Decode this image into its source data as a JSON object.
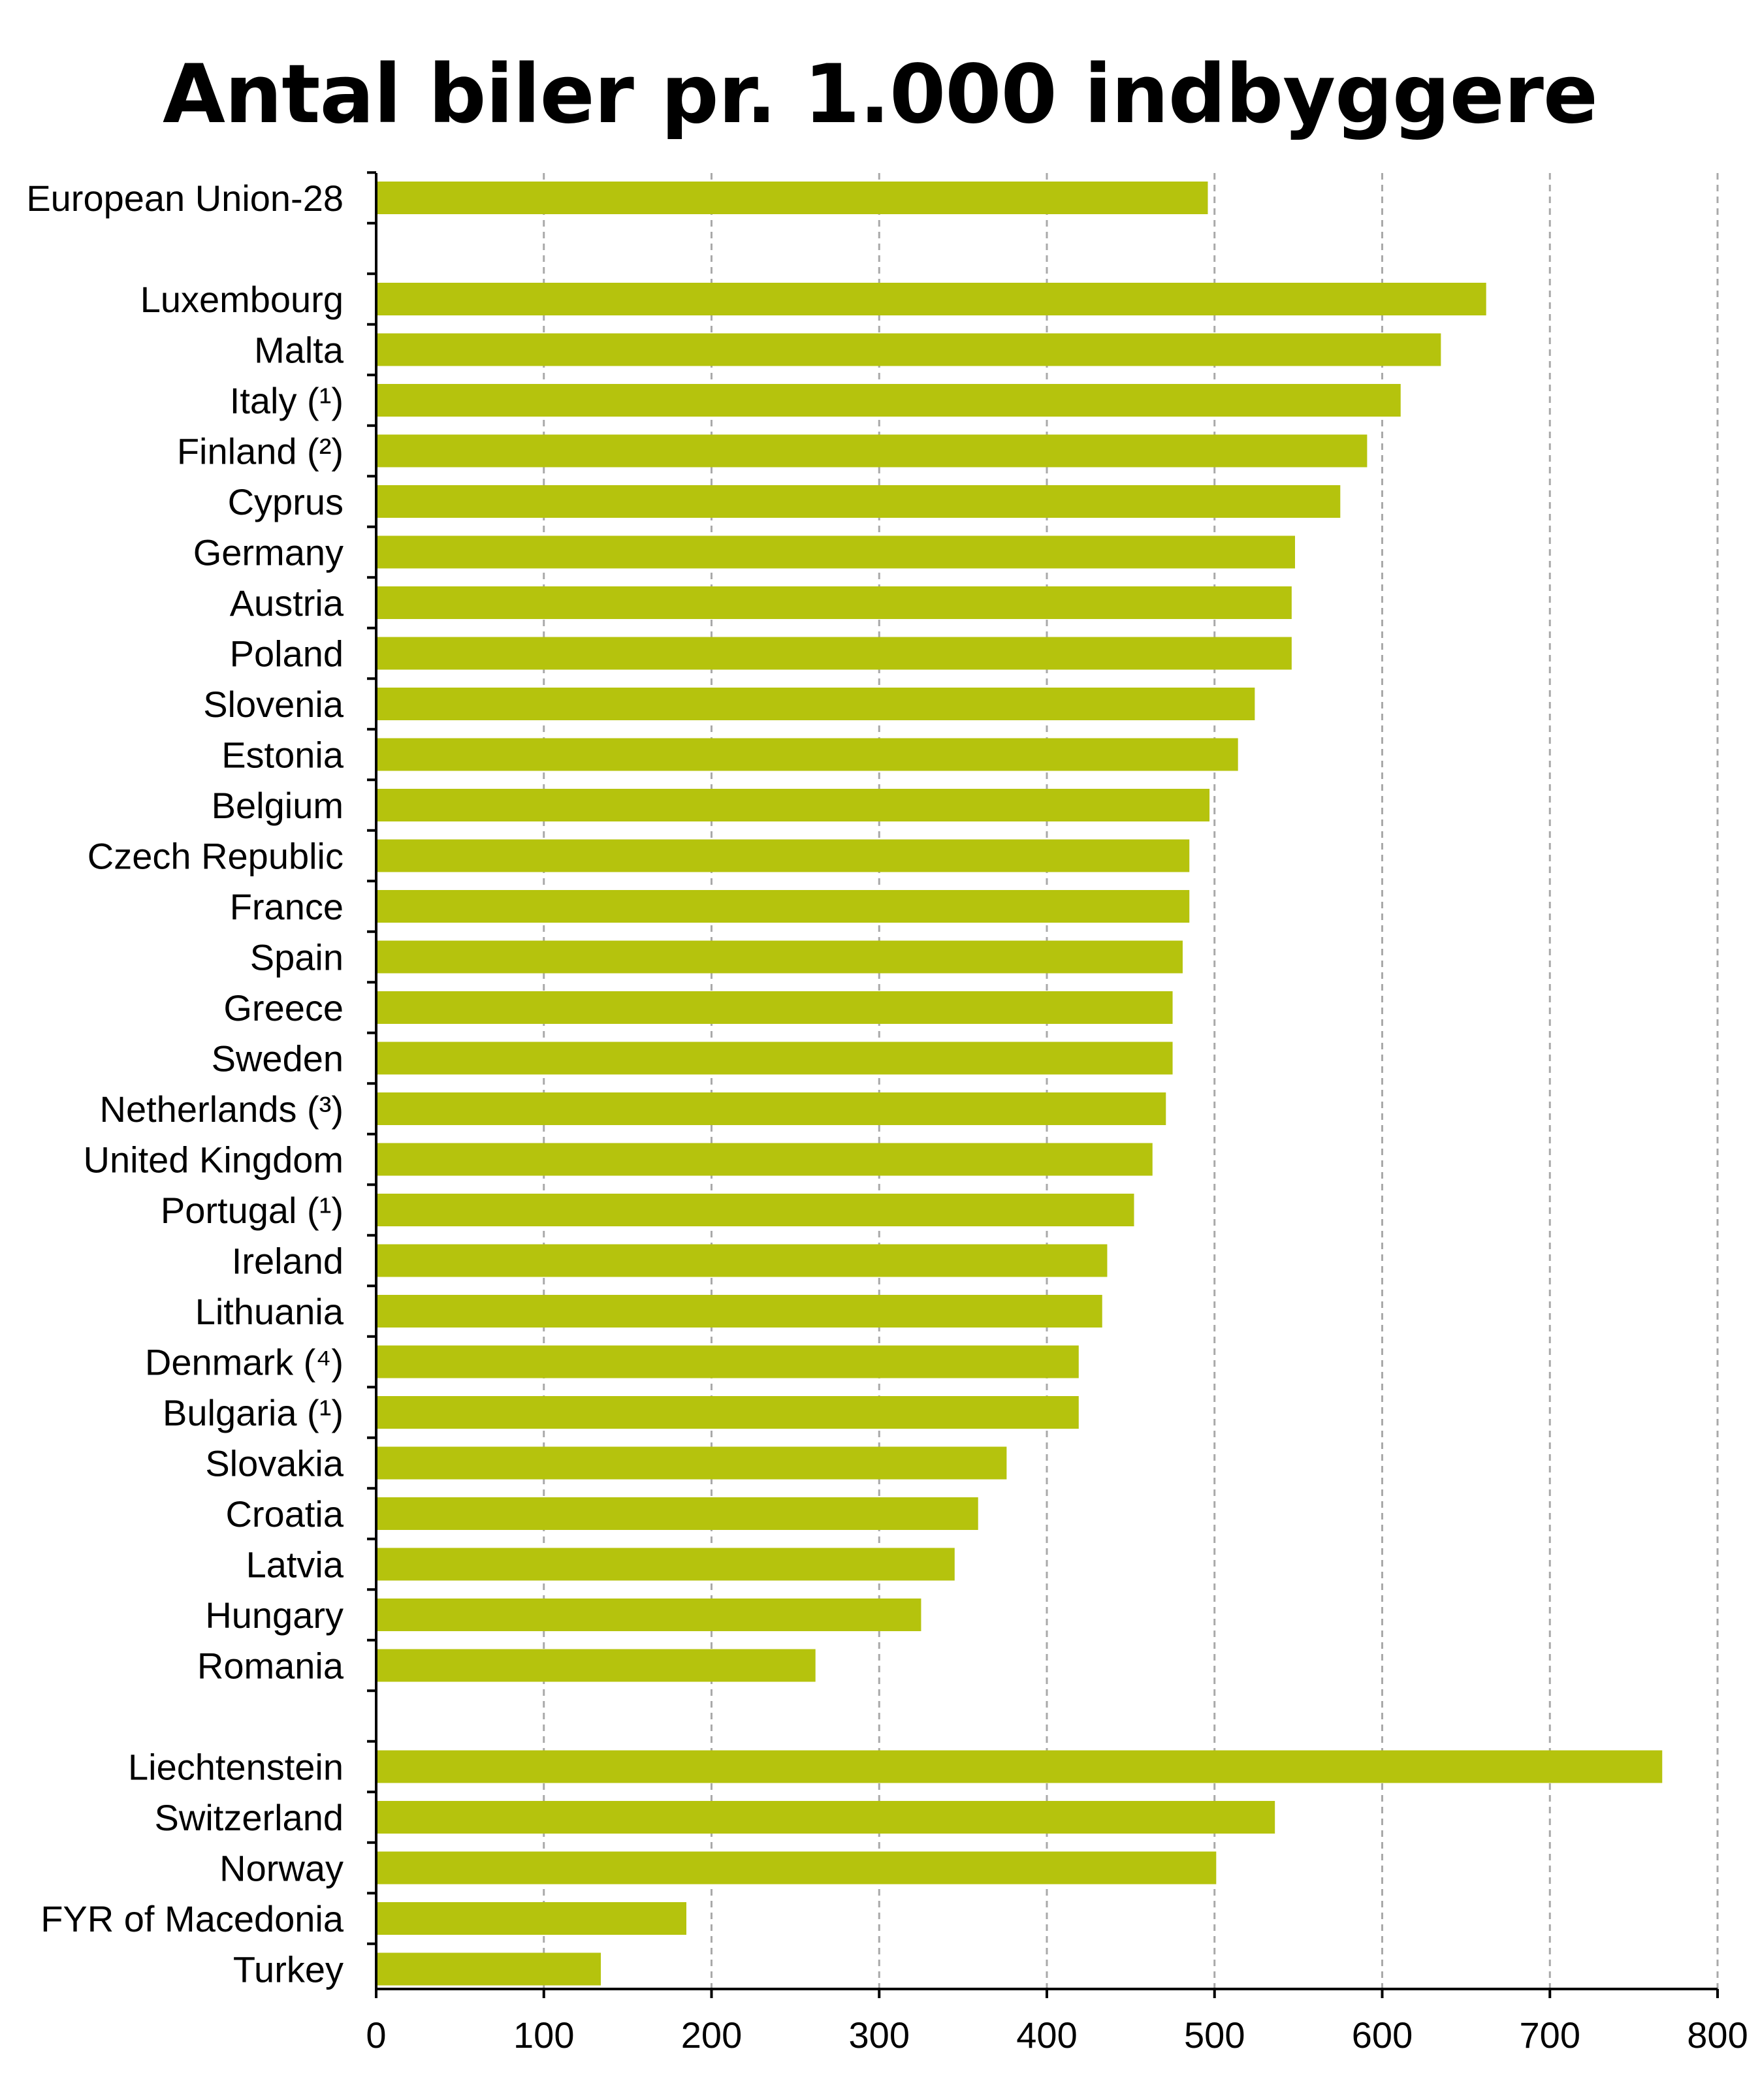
{
  "chart_data": {
    "type": "bar",
    "orientation": "horizontal",
    "title": "Antal biler pr. 1.000 indbyggere",
    "xlabel": "",
    "ylabel": "",
    "xlim": [
      0,
      800
    ],
    "ticks": [
      0,
      100,
      200,
      300,
      400,
      500,
      600,
      700,
      800
    ],
    "grid": true,
    "bar_color": "#b5c30d",
    "categories": [
      "European Union-28",
      "Luxembourg",
      "Malta",
      "Italy (¹)",
      "Finland (²)",
      "Cyprus",
      "Germany",
      "Austria",
      "Poland",
      "Slovenia",
      "Estonia",
      "Belgium",
      "Czech Republic",
      "France",
      "Spain",
      "Greece",
      "Sweden",
      "Netherlands (³)",
      "United Kingdom",
      "Portugal (¹)",
      "Ireland",
      "Lithuania",
      "Denmark (⁴)",
      "Bulgaria (¹)",
      "Slovakia",
      "Croatia",
      "Latvia",
      "Hungary",
      "Romania",
      "Liechtenstein",
      "Switzerland",
      "Norway",
      "FYR of Macedonia",
      "Turkey"
    ],
    "groups": [
      1,
      28,
      5
    ],
    "values": [
      496,
      662,
      635,
      611,
      591,
      575,
      548,
      546,
      546,
      524,
      514,
      497,
      485,
      485,
      481,
      475,
      475,
      471,
      463,
      452,
      436,
      433,
      419,
      419,
      376,
      359,
      345,
      325,
      262,
      767,
      536,
      501,
      185,
      134
    ]
  }
}
